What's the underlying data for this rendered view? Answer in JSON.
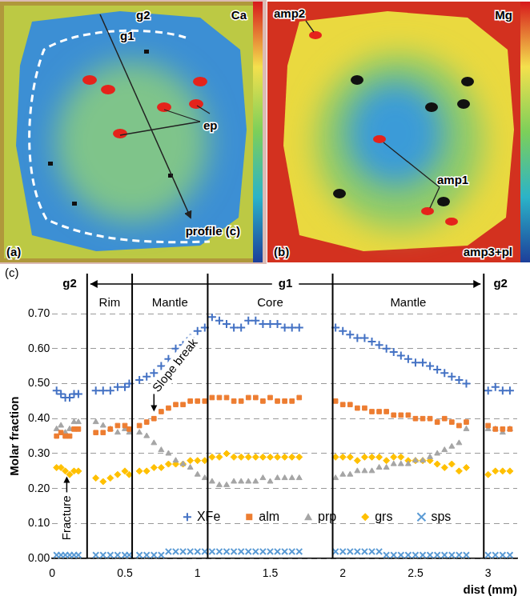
{
  "figure": {
    "panel_a": {
      "label": "(a)",
      "element": "Ca",
      "zone_outer": "g2",
      "zone_inner": "g1",
      "mineral": "ep",
      "profile": "profile (c)"
    },
    "panel_b": {
      "label": "(b)",
      "element": "Mg",
      "minerals": [
        "amp2",
        "amp1",
        "amp3+pl"
      ]
    }
  },
  "chart_data": {
    "type": "scatter",
    "panel_label": "(c)",
    "x_label": "dist (mm)",
    "y_label": "Molar fraction",
    "x": [
      0.03,
      0.06,
      0.09,
      0.12,
      0.15,
      0.18,
      0.3,
      0.35,
      0.4,
      0.45,
      0.5,
      0.53,
      0.6,
      0.65,
      0.7,
      0.75,
      0.8,
      0.85,
      0.9,
      0.95,
      1.0,
      1.05,
      1.1,
      1.15,
      1.2,
      1.25,
      1.3,
      1.35,
      1.4,
      1.45,
      1.5,
      1.55,
      1.6,
      1.65,
      1.7,
      1.95,
      2.0,
      2.05,
      2.1,
      2.15,
      2.2,
      2.25,
      2.3,
      2.35,
      2.4,
      2.45,
      2.5,
      2.55,
      2.6,
      2.65,
      2.7,
      2.75,
      2.8,
      2.85,
      3.0,
      3.05,
      3.1,
      3.15
    ],
    "series": [
      {
        "name": "XFe",
        "color": "#4472c4",
        "marker": "plus",
        "values": [
          0.48,
          0.47,
          0.46,
          0.46,
          0.47,
          0.47,
          0.48,
          0.48,
          0.48,
          0.49,
          0.49,
          0.5,
          0.51,
          0.52,
          0.53,
          0.55,
          0.57,
          0.6,
          0.61,
          0.63,
          0.65,
          0.66,
          0.69,
          0.68,
          0.67,
          0.66,
          0.66,
          0.68,
          0.68,
          0.67,
          0.67,
          0.67,
          0.66,
          0.66,
          0.66,
          0.66,
          0.65,
          0.64,
          0.63,
          0.63,
          0.62,
          0.61,
          0.6,
          0.59,
          0.58,
          0.57,
          0.56,
          0.56,
          0.55,
          0.54,
          0.53,
          0.52,
          0.51,
          0.5,
          0.48,
          0.49,
          0.48,
          0.48
        ]
      },
      {
        "name": "alm",
        "color": "#ed7d31",
        "marker": "square",
        "values": [
          0.35,
          0.36,
          0.35,
          0.35,
          0.37,
          0.37,
          0.36,
          0.36,
          0.37,
          0.38,
          0.38,
          0.37,
          0.38,
          0.39,
          0.4,
          0.42,
          0.43,
          0.44,
          0.44,
          0.45,
          0.45,
          0.45,
          0.46,
          0.46,
          0.46,
          0.45,
          0.45,
          0.46,
          0.46,
          0.45,
          0.46,
          0.45,
          0.45,
          0.45,
          0.46,
          0.45,
          0.44,
          0.44,
          0.43,
          0.43,
          0.42,
          0.42,
          0.42,
          0.41,
          0.41,
          0.41,
          0.4,
          0.4,
          0.4,
          0.39,
          0.4,
          0.39,
          0.38,
          0.39,
          0.38,
          0.37,
          0.37,
          0.37
        ]
      },
      {
        "name": "prp",
        "color": "#a5a5a5",
        "marker": "triangle",
        "values": [
          0.37,
          0.38,
          0.36,
          0.37,
          0.39,
          0.39,
          0.39,
          0.38,
          0.37,
          0.36,
          0.37,
          0.36,
          0.36,
          0.35,
          0.33,
          0.31,
          0.3,
          0.28,
          0.27,
          0.26,
          0.24,
          0.23,
          0.22,
          0.21,
          0.21,
          0.22,
          0.22,
          0.22,
          0.22,
          0.23,
          0.22,
          0.23,
          0.23,
          0.23,
          0.23,
          0.23,
          0.24,
          0.24,
          0.25,
          0.25,
          0.25,
          0.26,
          0.26,
          0.27,
          0.27,
          0.27,
          0.28,
          0.28,
          0.29,
          0.3,
          0.31,
          0.32,
          0.33,
          0.37,
          0.37,
          0.37,
          0.36,
          0.37
        ]
      },
      {
        "name": "grs",
        "color": "#ffc000",
        "marker": "diamond",
        "values": [
          0.26,
          0.26,
          0.25,
          0.24,
          0.25,
          0.25,
          0.23,
          0.22,
          0.23,
          0.24,
          0.25,
          0.24,
          0.25,
          0.25,
          0.26,
          0.26,
          0.27,
          0.27,
          0.27,
          0.28,
          0.28,
          0.28,
          0.29,
          0.29,
          0.3,
          0.29,
          0.29,
          0.29,
          0.29,
          0.29,
          0.29,
          0.29,
          0.29,
          0.29,
          0.29,
          0.29,
          0.29,
          0.29,
          0.28,
          0.29,
          0.29,
          0.29,
          0.28,
          0.29,
          0.29,
          0.28,
          0.28,
          0.28,
          0.28,
          0.27,
          0.26,
          0.27,
          0.25,
          0.26,
          0.24,
          0.25,
          0.25,
          0.25
        ]
      },
      {
        "name": "sps",
        "color": "#5b9bd5",
        "marker": "x",
        "values": [
          0.01,
          0.01,
          0.01,
          0.01,
          0.01,
          0.01,
          0.01,
          0.01,
          0.01,
          0.01,
          0.01,
          0.01,
          0.01,
          0.01,
          0.01,
          0.01,
          0.02,
          0.02,
          0.02,
          0.02,
          0.02,
          0.02,
          0.02,
          0.02,
          0.02,
          0.02,
          0.02,
          0.02,
          0.02,
          0.02,
          0.02,
          0.02,
          0.02,
          0.02,
          0.02,
          0.02,
          0.02,
          0.02,
          0.02,
          0.02,
          0.02,
          0.02,
          0.01,
          0.01,
          0.01,
          0.01,
          0.01,
          0.01,
          0.01,
          0.01,
          0.01,
          0.01,
          0.01,
          0.01,
          0.01,
          0.01,
          0.01,
          0.01
        ]
      }
    ],
    "xlim": [
      0,
      3.2
    ],
    "xticks": [
      0,
      0.5,
      1,
      1.5,
      2,
      2.5,
      3
    ],
    "ylim": [
      0,
      0.7
    ],
    "yticks": [
      {
        "value": 0,
        "label": "0.00"
      },
      {
        "value": 0.1,
        "label": "0.10"
      },
      {
        "value": 0.2,
        "label": "0.20"
      },
      {
        "value": 0.3,
        "label": "0.30"
      },
      {
        "value": 0.4,
        "label": "0.40"
      },
      {
        "value": 0.5,
        "label": "0.50"
      },
      {
        "value": 0.6,
        "label": "0.60"
      },
      {
        "value": 0.7,
        "label": "0.70"
      }
    ],
    "grid": true,
    "legend": "bottom",
    "groups": [
      {
        "label": "g2",
        "from": 0,
        "to": 0.24
      },
      {
        "label": "g1",
        "from": 0.24,
        "to": 2.97
      },
      {
        "label": "g2",
        "from": 2.97,
        "to": 3.2
      }
    ],
    "zones": [
      {
        "label": "Rim",
        "from": 0.24,
        "to": 0.55
      },
      {
        "label": "Mantle",
        "from": 0.55,
        "to": 1.07
      },
      {
        "label": "Core",
        "from": 1.07,
        "to": 1.93
      },
      {
        "label": "Mantle",
        "from": 1.93,
        "to": 2.97
      }
    ],
    "annotations": [
      {
        "text": "Slope break",
        "x": 0.7,
        "y": 0.42
      },
      {
        "text": "Fracture",
        "x": 0.1,
        "y": 0.235
      }
    ]
  }
}
